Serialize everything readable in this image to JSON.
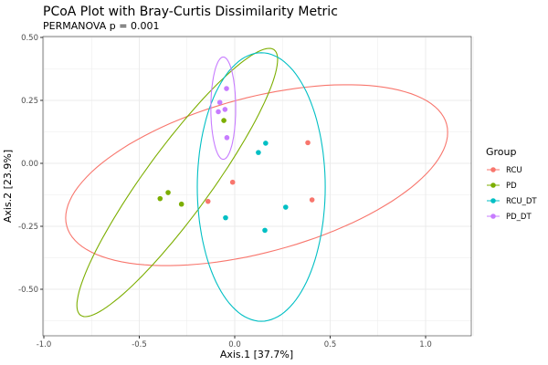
{
  "chart_data": {
    "type": "scatter",
    "title": "PCoA Plot with Bray-Curtis Dissimilarity Metric",
    "subtitle": "PERMANOVA p = 0.001",
    "xlabel": "Axis.1  [37.7%]",
    "ylabel": "Axis.2  [23.9%]",
    "xlim": [
      -1.0,
      1.25
    ],
    "ylim": [
      -0.68,
      0.52
    ],
    "xticks": [
      -1.0,
      -0.5,
      0.0,
      0.5,
      1.0
    ],
    "xtick_labels": [
      "-1.0",
      "-0.5",
      "0.0",
      "0.5",
      "1.0"
    ],
    "yticks": [
      0.5,
      0.25,
      0.0,
      -0.25,
      -0.5
    ],
    "ytick_labels": [
      "0.50",
      "0.25",
      "0.00",
      "-0.25",
      "-0.50"
    ],
    "grid": true,
    "legend": {
      "title": "Group",
      "placement": "right"
    },
    "series": [
      {
        "name": "RCU",
        "color": "#F8766D",
        "points": [
          [
            0.383,
            0.082
          ],
          [
            -0.011,
            -0.075
          ],
          [
            -0.14,
            -0.151
          ],
          [
            0.405,
            -0.145
          ]
        ],
        "ellipse": {
          "center": [
            0.115,
            -0.047
          ],
          "a": [
            0.995,
            0.202
          ],
          "b": [
            0.105,
            -0.297
          ]
        }
      },
      {
        "name": "PD",
        "color": "#7CAE00",
        "points": [
          [
            -0.057,
            0.17
          ],
          [
            -0.349,
            -0.116
          ],
          [
            -0.391,
            -0.14
          ],
          [
            -0.279,
            -0.162
          ]
        ],
        "ellipse": {
          "center": [
            -0.301,
            -0.076
          ],
          "a": [
            0.507,
            0.527
          ],
          "b": [
            0.139,
            -0.077
          ]
        }
      },
      {
        "name": "RCU_DT",
        "color": "#00BFC4",
        "points": [
          [
            0.162,
            0.08
          ],
          [
            0.124,
            0.043
          ],
          [
            0.267,
            -0.174
          ],
          [
            -0.048,
            -0.216
          ],
          [
            0.158,
            -0.266
          ]
        ],
        "ellipse": {
          "center": [
            0.139,
            -0.094
          ],
          "a": [
            0.0,
            0.533
          ],
          "b": [
            0.335,
            0.0
          ]
        }
      },
      {
        "name": "PD_DT",
        "color": "#C77CFF",
        "points": [
          [
            -0.043,
            0.297
          ],
          [
            -0.078,
            0.242
          ],
          [
            -0.051,
            0.214
          ],
          [
            -0.086,
            0.205
          ],
          [
            -0.041,
            0.102
          ]
        ],
        "ellipse": {
          "center": [
            -0.06,
            0.219
          ],
          "a": [
            0.0,
            0.203
          ],
          "b": [
            0.065,
            0.0
          ]
        }
      }
    ]
  }
}
